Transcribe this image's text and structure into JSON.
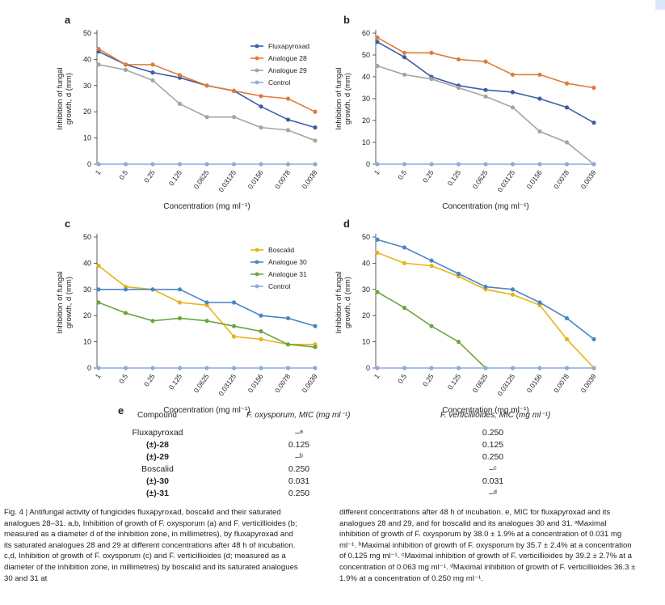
{
  "panels": {
    "a": {
      "letter": "a"
    },
    "b": {
      "letter": "b"
    },
    "c": {
      "letter": "c"
    },
    "d": {
      "letter": "d"
    }
  },
  "chart_data": [
    {
      "id": "a",
      "type": "line",
      "ylabel": "Inhibition of fungal growth, d (mm)",
      "xlabel": "Concentration (mg ml⁻¹)",
      "categories": [
        "1",
        "0.5",
        "0.25",
        "0.125",
        "0.0625",
        "0.03125",
        "0.0156",
        "0.0078",
        "0.0039"
      ],
      "ylim": [
        0,
        50
      ],
      "yticks": [
        0,
        10,
        20,
        30,
        40,
        50
      ],
      "legend": "top-right",
      "series": [
        {
          "name": "Fluxapyroxad",
          "color": "#3a5ea8",
          "values": [
            43,
            38,
            35,
            33,
            30,
            28,
            22,
            17,
            14
          ]
        },
        {
          "name": "Analogue 28",
          "color": "#e07b39",
          "values": [
            44,
            38,
            38,
            34,
            30,
            28,
            26,
            25,
            20
          ]
        },
        {
          "name": "Analogue 29",
          "color": "#a5a5a5",
          "values": [
            38,
            36,
            32,
            23,
            18,
            18,
            14,
            13,
            9
          ]
        },
        {
          "name": "Control",
          "color": "#8eaadb",
          "values": [
            0,
            0,
            0,
            0,
            0,
            0,
            0,
            0,
            0
          ]
        }
      ]
    },
    {
      "id": "b",
      "type": "line",
      "ylabel": "Inhibition of fungal growth, d (mm)",
      "xlabel": "Concentration (mg ml⁻¹)",
      "categories": [
        "1",
        "0.5",
        "0.25",
        "0.125",
        "0.0625",
        "0.03125",
        "0.0156",
        "0.0078",
        "0.0039"
      ],
      "ylim": [
        0,
        60
      ],
      "yticks": [
        0,
        10,
        20,
        30,
        40,
        50,
        60
      ],
      "series": [
        {
          "name": "Fluxapyroxad",
          "color": "#3a5ea8",
          "values": [
            56,
            49,
            40,
            36,
            34,
            33,
            30,
            26,
            19
          ]
        },
        {
          "name": "Analogue 28",
          "color": "#e07b39",
          "values": [
            58,
            51,
            51,
            48,
            47,
            41,
            41,
            37,
            35
          ]
        },
        {
          "name": "Analogue 29",
          "color": "#a5a5a5",
          "values": [
            45,
            41,
            39,
            35,
            31,
            26,
            15,
            10,
            0
          ]
        },
        {
          "name": "Control",
          "color": "#8eaadb",
          "values": [
            0,
            0,
            0,
            0,
            0,
            0,
            0,
            0,
            0
          ]
        }
      ]
    },
    {
      "id": "c",
      "type": "line",
      "ylabel": "Inhibition of fungal growth, d (mm)",
      "xlabel": "Concentration (mg ml⁻¹)",
      "categories": [
        "1",
        "0.5",
        "0.25",
        "0.125",
        "0.0625",
        "0.03125",
        "0.0156",
        "0.0078",
        "0.0039"
      ],
      "ylim": [
        0,
        50
      ],
      "yticks": [
        0,
        10,
        20,
        30,
        40,
        50
      ],
      "legend": "top-right",
      "series": [
        {
          "name": "Boscalid",
          "color": "#e7b416",
          "values": [
            39,
            31,
            30,
            25,
            24,
            12,
            11,
            9,
            9
          ]
        },
        {
          "name": "Analogue 30",
          "color": "#4a86c5",
          "values": [
            30,
            30,
            30,
            30,
            25,
            25,
            20,
            19,
            16
          ]
        },
        {
          "name": "Analogue 31",
          "color": "#6ba53e",
          "values": [
            25,
            21,
            18,
            19,
            18,
            16,
            14,
            9,
            8
          ]
        },
        {
          "name": "Control",
          "color": "#8eaadb",
          "values": [
            0,
            0,
            0,
            0,
            0,
            0,
            0,
            0,
            0
          ]
        }
      ]
    },
    {
      "id": "d",
      "type": "line",
      "ylabel": "Inhibition of fungal growth, d (mm)",
      "xlabel": "Concentration (mg ml⁻¹)",
      "categories": [
        "1",
        "0.5",
        "0.25",
        "0.125",
        "0.0625",
        "0.03125",
        "0.0156",
        "0.0078",
        "0.0039"
      ],
      "ylim": [
        0,
        50
      ],
      "yticks": [
        0,
        10,
        20,
        30,
        40,
        50
      ],
      "series": [
        {
          "name": "Boscalid",
          "color": "#e7b416",
          "values": [
            44,
            40,
            39,
            35,
            30,
            28,
            24,
            11,
            0
          ]
        },
        {
          "name": "Analogue 30",
          "color": "#4a86c5",
          "values": [
            49,
            46,
            41,
            36,
            31,
            30,
            25,
            19,
            11
          ]
        },
        {
          "name": "Analogue 31",
          "color": "#6ba53e",
          "values": [
            29,
            23,
            16,
            10,
            0,
            null,
            null,
            null,
            null
          ]
        },
        {
          "name": "Control",
          "color": "#8eaadb",
          "values": [
            0,
            0,
            0,
            0,
            0,
            0,
            0,
            0,
            0
          ]
        }
      ]
    }
  ],
  "table": {
    "letter": "e",
    "headers": {
      "compound": "Compound",
      "oxysporum": "F. oxysporum, MIC (mg ml⁻¹)",
      "verticillioides": "F. verticillioides, MIC (mg ml⁻¹)"
    },
    "rows": [
      {
        "compound": "Fluxapyroxad",
        "oxysporum": "–ᵃ",
        "verticillioides": "0.250"
      },
      {
        "compound": "(±)-28",
        "oxysporum": "0.125",
        "verticillioides": "0.125"
      },
      {
        "compound": "(±)-29",
        "oxysporum": "–ᵇ",
        "verticillioides": "0.250"
      },
      {
        "compound": "Boscalid",
        "oxysporum": "0.250",
        "verticillioides": "–ᶜ"
      },
      {
        "compound": "(±)-30",
        "oxysporum": "0.031",
        "verticillioides": "0.031"
      },
      {
        "compound": "(±)-31",
        "oxysporum": "0.250",
        "verticillioides": "–ᵈ"
      }
    ]
  },
  "caption": {
    "left": "Fig. 4 | Antifungal activity of fungicides fluxapyroxad, boscalid and their saturated analogues 28–31. a,b, Inhibition of growth of F. oxysporum (a) and F. verticillioides (b; measured as a diameter d of the inhibition zone, in millimetres), by fluxapyroxad and its saturated analogues 28 and 29 at different concentrations after 48 h of incubation. c,d, Inhibition of growth of F. oxysporum (c) and F. verticillioides (d; measured as a diameter of the inhibition zone, in millimetres) by boscalid and its saturated analogues 30 and 31 at",
    "right": "different concentrations after 48 h of incubation. e, MIC for fluxapyroxad and its analogues 28 and 29, and for boscalid and its analogues 30 and 31. ᵃMaximal inhibition of growth of F. oxysporum by 38.0 ± 1.9% at a concentration of 0.031 mg ml⁻¹. ᵇMaximal inhibition of growth of F. oxysporum by 35.7 ± 2.4% at a concentration of 0.125 mg ml⁻¹. ᶜMaximal inhibition of growth of F. verticillioides by 39.2 ± 2.7% at a concentration of 0.063 mg ml⁻¹. ᵈMaximal inhibition of growth of F. verticillioides 36.3 ± 1.9% at a concentration of 0.250 mg ml⁻¹."
  }
}
